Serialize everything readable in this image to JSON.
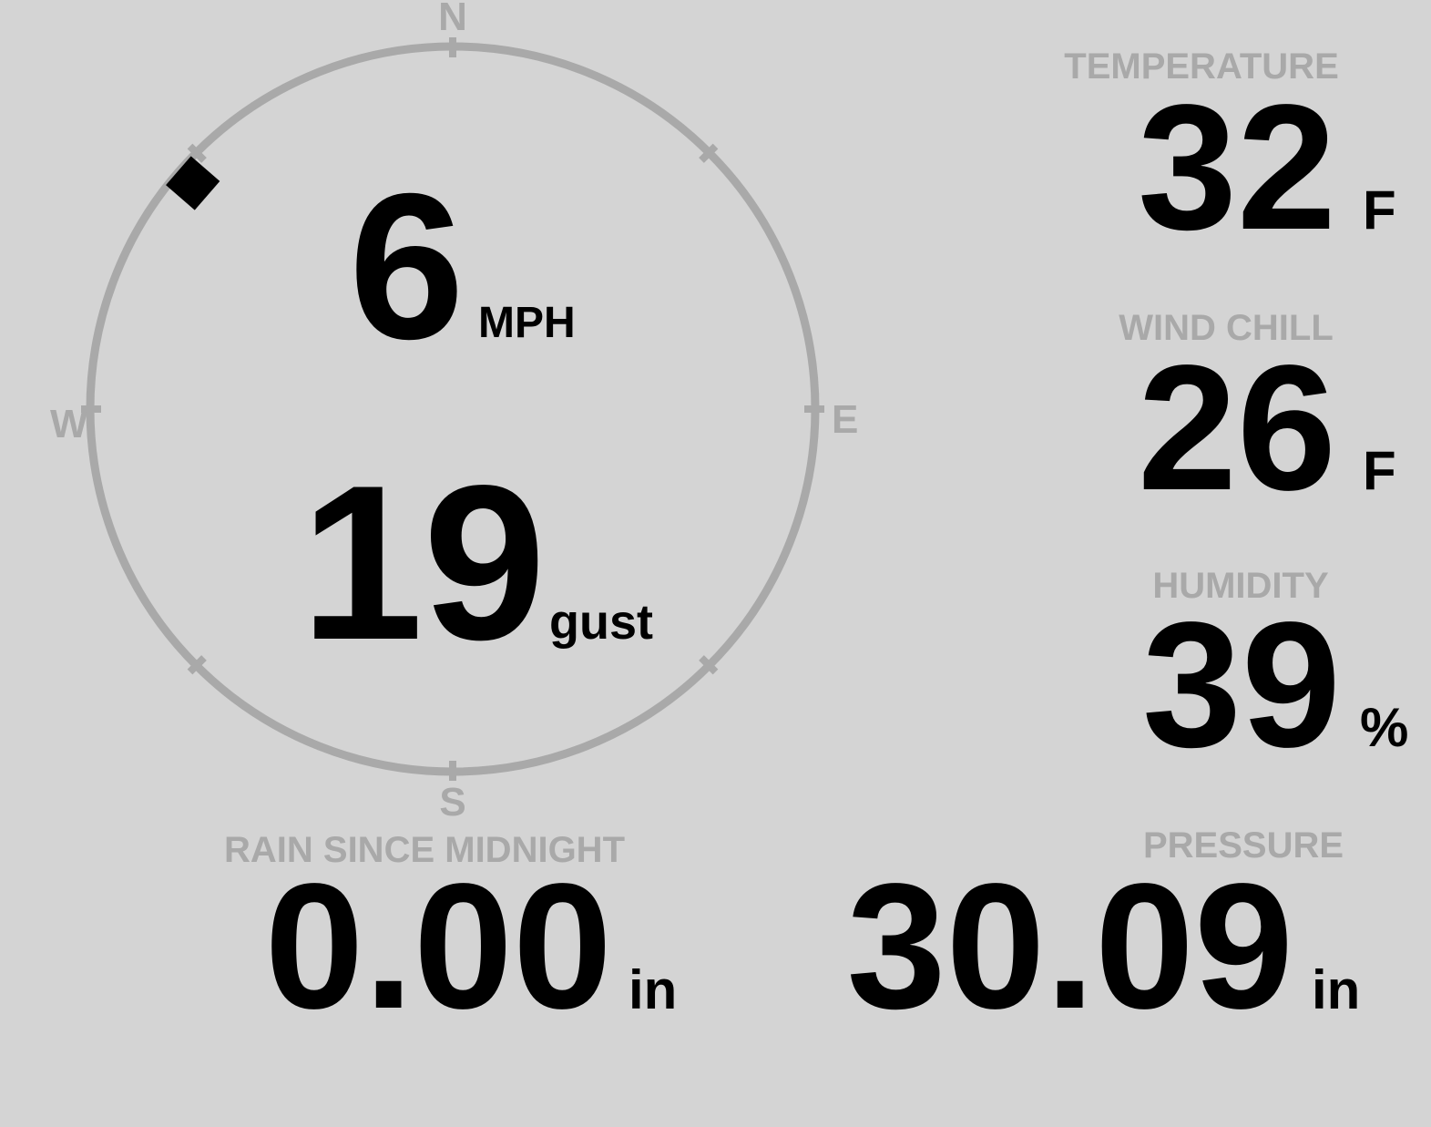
{
  "colors": {
    "background": "#d4d4d4",
    "muted": "#a9a9a9",
    "text": "#000000"
  },
  "compass": {
    "cardinal_labels": {
      "n": "N",
      "e": "E",
      "s": "S",
      "w": "W"
    },
    "wind_direction_deg": 311,
    "speed": {
      "value": "6",
      "unit": "MPH"
    },
    "gust": {
      "value": "19",
      "unit": "gust"
    }
  },
  "metrics": {
    "temperature": {
      "label": "TEMPERATURE",
      "value": "32",
      "unit": "F"
    },
    "wind_chill": {
      "label": "WIND CHILL",
      "value": "26",
      "unit": "F"
    },
    "humidity": {
      "label": "HUMIDITY",
      "value": "39",
      "unit": "%"
    },
    "rain_since_midnight": {
      "label": "RAIN SINCE MIDNIGHT",
      "value": "0.00",
      "unit": "in"
    },
    "pressure": {
      "label": "PRESSURE",
      "value": "30.09",
      "unit": "in"
    }
  }
}
